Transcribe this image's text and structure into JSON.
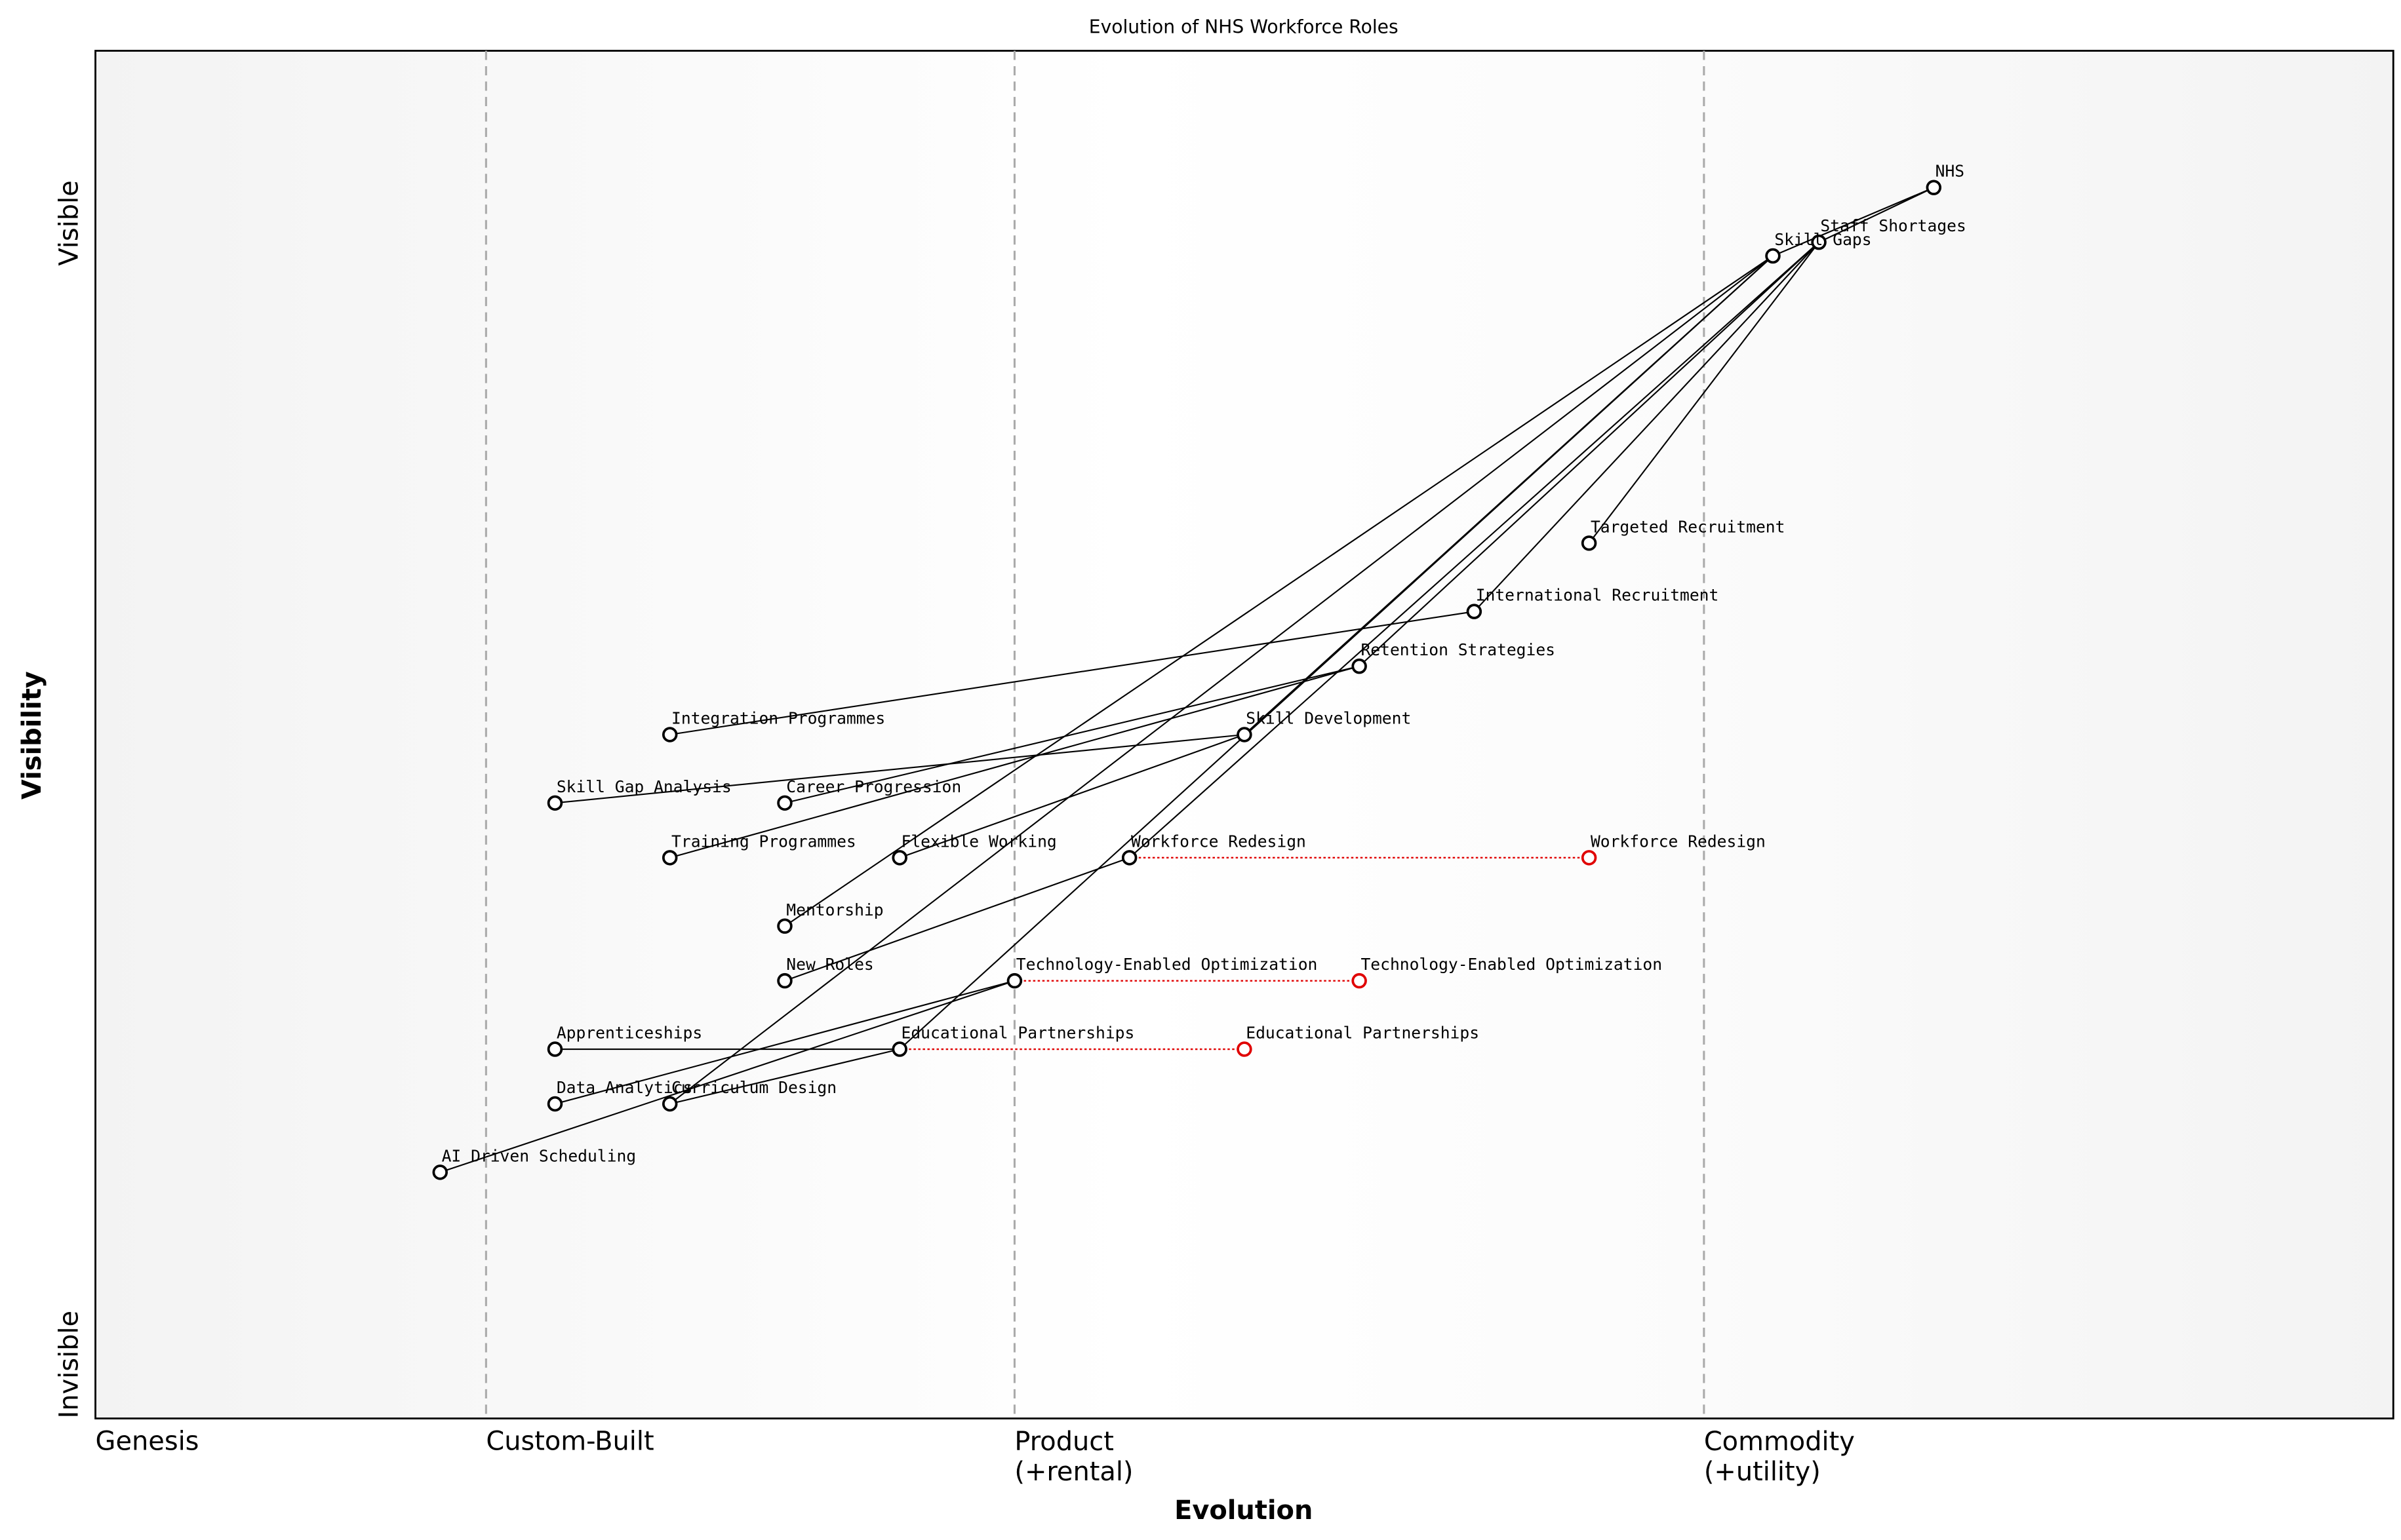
{
  "chart_data": {
    "type": "wardley",
    "title": "Evolution of NHS Workforce Roles",
    "x_label": "Evolution",
    "y_label": "Visibility",
    "xlim": [
      0,
      1
    ],
    "ylim": [
      0,
      1
    ],
    "xticks": [
      {
        "value": 0,
        "label": "Genesis"
      },
      {
        "value": 0.17,
        "label": "Custom-Built"
      },
      {
        "value": 0.4,
        "label": "Product\n(+rental)"
      },
      {
        "value": 0.7,
        "label": "Commodity\n(+utility)"
      }
    ],
    "yticks": [
      {
        "value": 0,
        "label": "Invisible"
      },
      {
        "value": 1,
        "label": "Visible"
      }
    ],
    "stage_lines": true,
    "color": "#000000",
    "evolve_color": "#e00000",
    "components": [
      {
        "name": "NHS",
        "evolution": 0.8,
        "visibility": 0.9
      },
      {
        "name": "Staff Shortages",
        "evolution": 0.75,
        "visibility": 0.86
      },
      {
        "name": "Skill Gaps",
        "evolution": 0.73,
        "visibility": 0.85
      },
      {
        "name": "Targeted Recruitment",
        "evolution": 0.65,
        "visibility": 0.64
      },
      {
        "name": "International Recruitment",
        "evolution": 0.6,
        "visibility": 0.59
      },
      {
        "name": "Retention Strategies",
        "evolution": 0.55,
        "visibility": 0.55
      },
      {
        "name": "Skill Development",
        "evolution": 0.5,
        "visibility": 0.5
      },
      {
        "name": "Integration Programmes",
        "evolution": 0.25,
        "visibility": 0.5
      },
      {
        "name": "Skill Gap Analysis",
        "evolution": 0.2,
        "visibility": 0.45
      },
      {
        "name": "Career Progression",
        "evolution": 0.3,
        "visibility": 0.45
      },
      {
        "name": "Training Programmes",
        "evolution": 0.25,
        "visibility": 0.41
      },
      {
        "name": "Flexible Working",
        "evolution": 0.35,
        "visibility": 0.41
      },
      {
        "name": "Workforce Redesign",
        "evolution": 0.45,
        "visibility": 0.41
      },
      {
        "name": "Mentorship",
        "evolution": 0.3,
        "visibility": 0.36
      },
      {
        "name": "New Roles",
        "evolution": 0.3,
        "visibility": 0.32
      },
      {
        "name": "Technology-Enabled Optimization",
        "evolution": 0.4,
        "visibility": 0.32
      },
      {
        "name": "Apprenticeships",
        "evolution": 0.2,
        "visibility": 0.27
      },
      {
        "name": "Educational Partnerships",
        "evolution": 0.35,
        "visibility": 0.27
      },
      {
        "name": "Data Analytics",
        "evolution": 0.2,
        "visibility": 0.23
      },
      {
        "name": "Curriculum Design",
        "evolution": 0.25,
        "visibility": 0.23
      },
      {
        "name": "AI Driven Scheduling",
        "evolution": 0.15,
        "visibility": 0.18
      }
    ],
    "links": [
      [
        0,
        1
      ],
      [
        0,
        2
      ],
      [
        1,
        3
      ],
      [
        1,
        4
      ],
      [
        1,
        5
      ],
      [
        1,
        12
      ],
      [
        2,
        6
      ],
      [
        2,
        13
      ],
      [
        2,
        17
      ],
      [
        4,
        7
      ],
      [
        5,
        9
      ],
      [
        5,
        10
      ],
      [
        6,
        8
      ],
      [
        6,
        11
      ],
      [
        12,
        14
      ],
      [
        15,
        18
      ],
      [
        15,
        20
      ],
      [
        17,
        16
      ],
      [
        17,
        19
      ],
      [
        2,
        19
      ]
    ],
    "evolves": [
      {
        "component": 12,
        "evolution": 0.65
      },
      {
        "component": 15,
        "evolution": 0.55
      },
      {
        "component": 17,
        "evolution": 0.5
      }
    ]
  }
}
